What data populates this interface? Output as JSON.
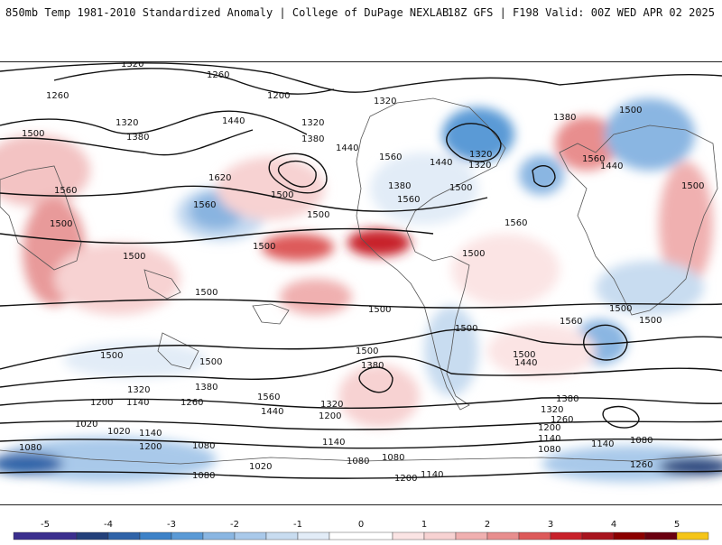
{
  "header": {
    "title_left": "850mb Temp 1981-2010 Standardized Anomaly | College of DuPage NEXLAB",
    "title_right": "18Z GFS | F198 Valid: 00Z WED APR 02 2025"
  },
  "colors": {
    "land_outline": "#555555",
    "contour": "#111111",
    "warm_light": "#f7d2d2",
    "warm_mid": "#e88e8e",
    "warm_strong": "#c8202a",
    "warm_extreme": "#8b0000",
    "cold_light": "#c8dcf0",
    "cold_mid": "#8ab6e2",
    "cold_strong": "#3d82c8",
    "cold_extreme": "#23407a"
  },
  "colorbar": {
    "tick_labels": [
      "-5",
      "-4",
      "-3",
      "-2",
      "-1",
      "0",
      "1",
      "2",
      "3",
      "4",
      "5"
    ],
    "segments": [
      {
        "from": -5.5,
        "to": -4.5,
        "color": "#3b2f8e"
      },
      {
        "from": -4.5,
        "to": -4,
        "color": "#23407a"
      },
      {
        "from": -4,
        "to": -3.5,
        "color": "#2f63a8"
      },
      {
        "from": -3.5,
        "to": -3,
        "color": "#3d82c8"
      },
      {
        "from": -3,
        "to": -2.5,
        "color": "#5a9ad6"
      },
      {
        "from": -2.5,
        "to": -2,
        "color": "#8ab6e2"
      },
      {
        "from": -2,
        "to": -1.5,
        "color": "#a9c9ea"
      },
      {
        "from": -1.5,
        "to": -1,
        "color": "#c8dcf0"
      },
      {
        "from": -1,
        "to": -0.5,
        "color": "#e2ecf7"
      },
      {
        "from": -0.5,
        "to": 0.5,
        "color": "#ffffff"
      },
      {
        "from": 0.5,
        "to": 1,
        "color": "#fbe4e4"
      },
      {
        "from": 1,
        "to": 1.5,
        "color": "#f7d2d2"
      },
      {
        "from": 1.5,
        "to": 2,
        "color": "#f0b0b0"
      },
      {
        "from": 2,
        "to": 2.5,
        "color": "#e88e8e"
      },
      {
        "from": 2.5,
        "to": 3,
        "color": "#dd5a5a"
      },
      {
        "from": 3,
        "to": 3.5,
        "color": "#c8202a"
      },
      {
        "from": 3.5,
        "to": 4,
        "color": "#a8141e"
      },
      {
        "from": 4,
        "to": 4.5,
        "color": "#8b0000"
      },
      {
        "from": 4.5,
        "to": 5,
        "color": "#6a0010"
      },
      {
        "from": 5,
        "to": 5.5,
        "color": "#f5c518"
      }
    ]
  },
  "contour_labels": [
    "1320",
    "1260",
    "1260",
    "1200",
    "1320",
    "1440",
    "1500",
    "1380",
    "1320",
    "1380",
    "1440",
    "1560",
    "1620",
    "1500",
    "1560",
    "1500",
    "1500",
    "1500",
    "1500",
    "1500",
    "1320",
    "1380",
    "1440",
    "1320",
    "1500",
    "1560",
    "1500",
    "1560",
    "1500",
    "1500",
    "1500",
    "1500",
    "1500",
    "1500",
    "1560",
    "1500",
    "1500",
    "1380",
    "1500",
    "1440",
    "1320",
    "1380",
    "1200",
    "1140",
    "1260",
    "1560",
    "1440",
    "1320",
    "1200",
    "1020",
    "1020",
    "1140",
    "1200",
    "1080",
    "1080",
    "1140",
    "1080",
    "1020",
    "1080",
    "1080",
    "1200",
    "1140",
    "1380",
    "1320",
    "1260",
    "1200",
    "1140",
    "1080",
    "1080",
    "1140",
    "1260",
    "1500",
    "1560",
    "1440",
    "1560",
    "1320",
    "1380"
  ]
}
